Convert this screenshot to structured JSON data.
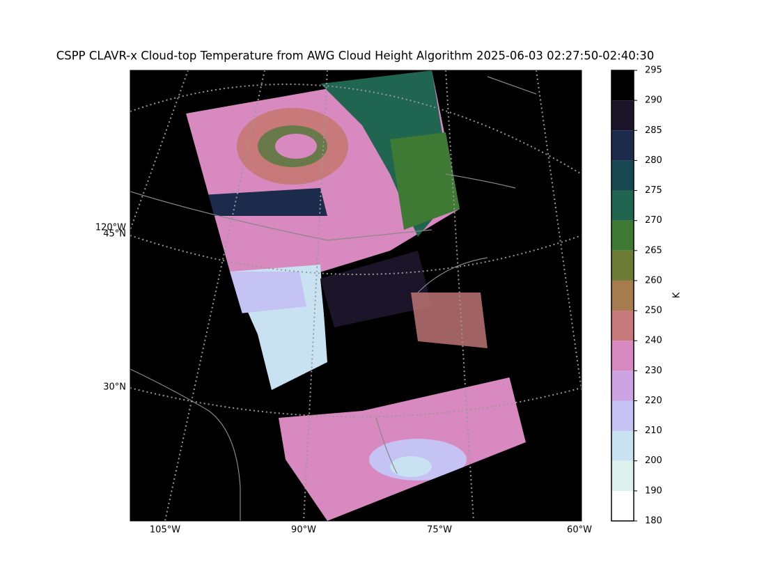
{
  "title": "CSPP CLAVR-x Cloud-top Temperature from AWG Cloud Height Algorithm 2025-06-03 02:27:50-02:40:30",
  "map": {
    "lon_labels": [
      "105°W",
      "90°W",
      "75°W",
      "60°W"
    ],
    "lat_labels": [
      "120°W",
      "45°N",
      "30°N"
    ]
  },
  "colorbar": {
    "label": "K",
    "levels": [
      180,
      190,
      200,
      210,
      220,
      230,
      240,
      250,
      260,
      265,
      270,
      275,
      280,
      285,
      290,
      295
    ],
    "colors": [
      "#ffffff",
      "#dcf2ec",
      "#c8e2f2",
      "#c4c3f3",
      "#cea3e3",
      "#d889c0",
      "#c87a7a",
      "#a67b4e",
      "#6e7b35",
      "#3f7a34",
      "#1f6550",
      "#174852",
      "#1c2a4c",
      "#1c1429",
      "#000000"
    ]
  }
}
